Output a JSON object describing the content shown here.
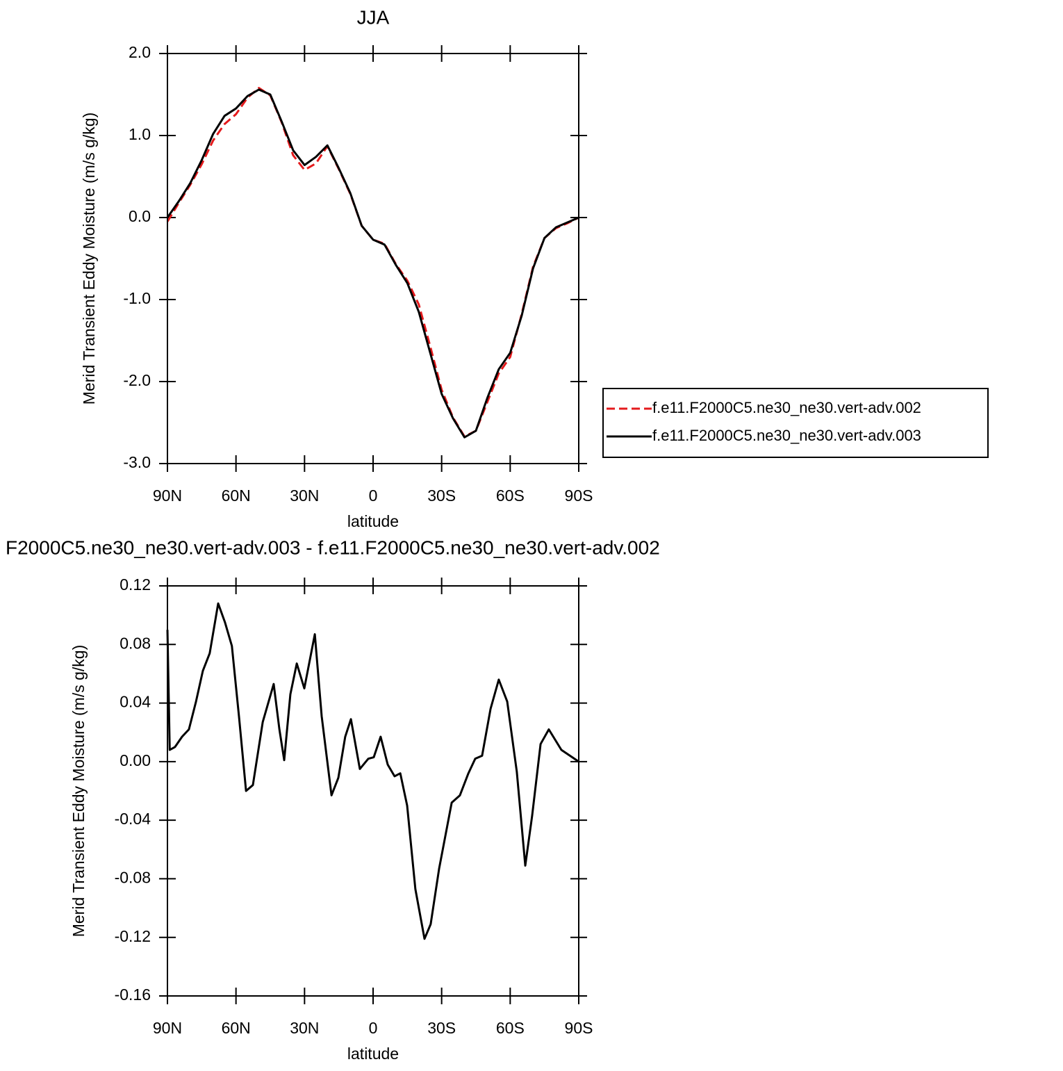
{
  "chart_data": [
    {
      "type": "line",
      "title": "JJA",
      "x_label": "latitude",
      "y_label": "Merid Transient Eddy Moisture (m/s g/kg)",
      "x": [
        90,
        85,
        80,
        75,
        70,
        65,
        60,
        55,
        50,
        45,
        40,
        35,
        30,
        25,
        20,
        15,
        10,
        5,
        0,
        -5,
        -10,
        -15,
        -20,
        -25,
        -30,
        -35,
        -40,
        -45,
        -50,
        -55,
        -60,
        -65,
        -70,
        -75,
        -80,
        -85,
        -90
      ],
      "series": [
        {
          "name": "f.e11.F2000C5.ne30_ne30.vert-adv.002",
          "color": "#e41a1c",
          "dashed": true,
          "values": [
            -0.05,
            0.18,
            0.4,
            0.65,
            0.94,
            1.14,
            1.26,
            1.46,
            1.58,
            1.49,
            1.16,
            0.76,
            0.58,
            0.66,
            0.87,
            0.59,
            0.29,
            -0.1,
            -0.27,
            -0.32,
            -0.57,
            -0.77,
            -1.06,
            -1.57,
            -2.1,
            -2.44,
            -2.67,
            -2.6,
            -2.25,
            -1.9,
            -1.7,
            -1.18,
            -0.6,
            -0.25,
            -0.13,
            -0.07,
            0.0
          ]
        },
        {
          "name": "f.e11.F2000C5.ne30_ne30.vert-adv.003",
          "color": "#000000",
          "dashed": false,
          "values": [
            0.0,
            0.2,
            0.42,
            0.7,
            1.02,
            1.24,
            1.33,
            1.48,
            1.56,
            1.5,
            1.17,
            0.82,
            0.64,
            0.74,
            0.88,
            0.6,
            0.3,
            -0.1,
            -0.27,
            -0.33,
            -0.58,
            -0.8,
            -1.15,
            -1.65,
            -2.15,
            -2.45,
            -2.68,
            -2.6,
            -2.2,
            -1.85,
            -1.65,
            -1.2,
            -0.62,
            -0.25,
            -0.12,
            -0.06,
            0.0
          ]
        }
      ],
      "xlim": [
        90,
        -90
      ],
      "xticks": [
        {
          "value": 90,
          "label": "90N"
        },
        {
          "value": 60,
          "label": "60N"
        },
        {
          "value": 30,
          "label": "30N"
        },
        0,
        {
          "value": -30,
          "label": "30S"
        },
        {
          "value": -60,
          "label": "60S"
        },
        {
          "value": -90,
          "label": "90S"
        }
      ],
      "ylim": [
        -3,
        2
      ],
      "yticks": [
        {
          "value": -3,
          "label": "-3.0"
        },
        {
          "value": -2,
          "label": "-2.0"
        },
        {
          "value": -1,
          "label": "-1.0"
        },
        {
          "value": 0,
          "label": "0.0"
        },
        {
          "value": 1,
          "label": "1.0"
        },
        {
          "value": 2,
          "label": "2.0"
        }
      ],
      "legend": "right"
    },
    {
      "type": "line",
      "title": "F2000C5.ne30_ne30.vert-adv.003 - f.e11.F2000C5.ne30_ne30.vert-adv.002",
      "x_label": "latitude",
      "y_label": "Merid Transient Eddy Moisture (m/s g/kg)",
      "x": [
        90,
        89,
        86.7,
        83.6,
        80.6,
        77.5,
        74.5,
        71.5,
        67.8,
        64.8,
        61.8,
        58.7,
        55.6,
        52.6,
        48.3,
        43.5,
        41,
        38.9,
        36.2,
        33.4,
        30.1,
        25.5,
        22.5,
        18.2,
        15.2,
        12.2,
        9.7,
        5.8,
        2.1,
        -0.3,
        -3.3,
        -6.4,
        -9.4,
        -11.9,
        -14.9,
        -18.5,
        -22.5,
        -25.2,
        -28.9,
        -34.4,
        -38,
        -41.7,
        -44.7,
        -47.7,
        -51.4,
        -55,
        -58.7,
        -62.9,
        -66.6,
        -69.6,
        -73.3,
        -76.9,
        -82.4,
        -90
      ],
      "values": [
        0.09,
        0.008,
        0.01,
        0.017,
        0.022,
        0.041,
        0.062,
        0.074,
        0.108,
        0.095,
        0.079,
        0.031,
        -0.02,
        -0.016,
        0.027,
        0.053,
        0.022,
        0.001,
        0.046,
        0.067,
        0.05,
        0.087,
        0.031,
        -0.023,
        -0.011,
        0.017,
        0.029,
        -0.005,
        0.002,
        0.003,
        0.017,
        -0.002,
        -0.01,
        -0.008,
        -0.03,
        -0.087,
        -0.121,
        -0.111,
        -0.073,
        -0.028,
        -0.023,
        -0.008,
        0.002,
        0.004,
        0.036,
        0.056,
        0.041,
        -0.007,
        -0.071,
        -0.037,
        0.012,
        0.022,
        0.008,
        0
      ],
      "color": "#000000",
      "xlim": [
        90,
        -90
      ],
      "xticks": [
        {
          "value": 90,
          "label": "90N"
        },
        {
          "value": 60,
          "label": "60N"
        },
        {
          "value": 30,
          "label": "30N"
        },
        0,
        {
          "value": -30,
          "label": "30S"
        },
        {
          "value": -60,
          "label": "60S"
        },
        {
          "value": -90,
          "label": "90S"
        }
      ],
      "ylim": [
        -0.16,
        0.12
      ],
      "yticks": [
        -0.16,
        -0.12,
        -0.08,
        -0.04,
        {
          "value": 0,
          "label": "0.00"
        },
        0.04,
        0.08,
        0.12
      ]
    }
  ]
}
